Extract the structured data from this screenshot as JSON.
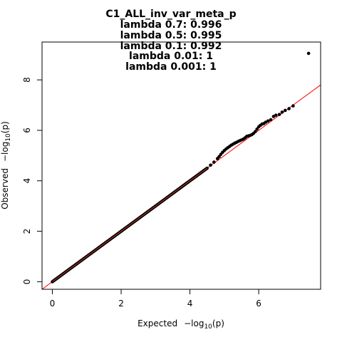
{
  "chart_data": {
    "type": "scatter",
    "title": "C1_ALL_inv_var_meta_p",
    "lambda_lines": [
      "lambda 0.7: 0.996",
      "lambda 0.5: 0.995",
      "lambda 0.1: 0.992",
      "lambda 0.01: 1",
      "lambda 0.001: 1"
    ],
    "xlabel": {
      "prefix": "Expected",
      "neg": "−log",
      "sub": "10",
      "arg": "(p)"
    },
    "ylabel": {
      "prefix": "Observed",
      "neg": "−log",
      "sub": "10",
      "arg": "(p)"
    },
    "xlim": [
      -0.3,
      7.8
    ],
    "ylim": [
      -0.3,
      9.5
    ],
    "x_ticks": [
      0,
      2,
      4,
      6
    ],
    "y_ticks": [
      0,
      2,
      4,
      6,
      8
    ],
    "reference_line": {
      "slope": 1,
      "intercept": 0,
      "color": "#ff0000"
    },
    "point_color": "#000000",
    "band_end": 4.5,
    "points": [
      [
        4.6,
        4.62
      ],
      [
        4.7,
        4.74
      ],
      [
        4.8,
        4.88
      ],
      [
        4.85,
        4.96
      ],
      [
        4.9,
        5.05
      ],
      [
        4.95,
        5.13
      ],
      [
        5.0,
        5.2
      ],
      [
        5.05,
        5.26
      ],
      [
        5.1,
        5.31
      ],
      [
        5.15,
        5.36
      ],
      [
        5.2,
        5.41
      ],
      [
        5.25,
        5.45
      ],
      [
        5.3,
        5.49
      ],
      [
        5.35,
        5.52
      ],
      [
        5.4,
        5.56
      ],
      [
        5.45,
        5.59
      ],
      [
        5.5,
        5.62
      ],
      [
        5.55,
        5.65
      ],
      [
        5.6,
        5.7
      ],
      [
        5.65,
        5.76
      ],
      [
        5.7,
        5.78
      ],
      [
        5.75,
        5.8
      ],
      [
        5.8,
        5.83
      ],
      [
        5.85,
        5.88
      ],
      [
        5.9,
        5.95
      ],
      [
        5.95,
        6.05
      ],
      [
        6.0,
        6.14
      ],
      [
        6.05,
        6.2
      ],
      [
        6.1,
        6.25
      ],
      [
        6.15,
        6.27
      ],
      [
        6.2,
        6.32
      ],
      [
        6.27,
        6.37
      ],
      [
        6.35,
        6.42
      ],
      [
        6.43,
        6.55
      ],
      [
        6.5,
        6.6
      ],
      [
        6.6,
        6.63
      ],
      [
        6.68,
        6.72
      ],
      [
        6.77,
        6.79
      ],
      [
        6.88,
        6.86
      ],
      [
        7.0,
        6.97
      ],
      [
        7.45,
        9.05
      ]
    ]
  }
}
